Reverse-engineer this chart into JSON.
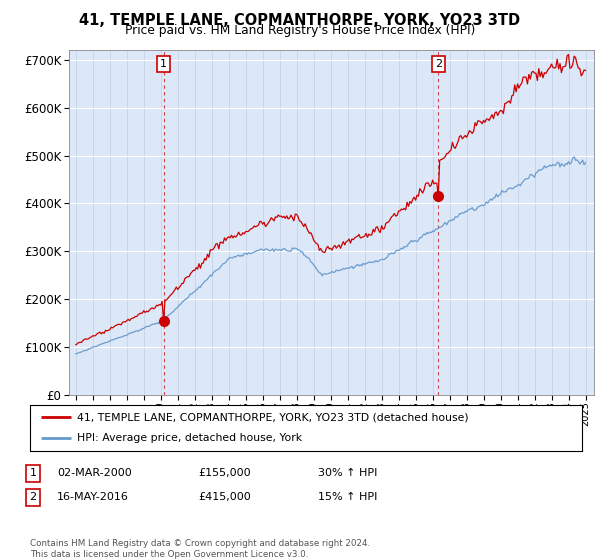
{
  "title": "41, TEMPLE LANE, COPMANTHORPE, YORK, YO23 3TD",
  "subtitle": "Price paid vs. HM Land Registry's House Price Index (HPI)",
  "legend_line1": "41, TEMPLE LANE, COPMANTHORPE, YORK, YO23 3TD (detached house)",
  "legend_line2": "HPI: Average price, detached house, York",
  "transaction1_label": "1",
  "transaction1_date": "02-MAR-2000",
  "transaction1_price": "£155,000",
  "transaction1_hpi": "30% ↑ HPI",
  "transaction2_label": "2",
  "transaction2_date": "16-MAY-2016",
  "transaction2_price": "£415,000",
  "transaction2_hpi": "15% ↑ HPI",
  "footer": "Contains HM Land Registry data © Crown copyright and database right 2024.\nThis data is licensed under the Open Government Licence v3.0.",
  "red_color": "#cc0000",
  "blue_color": "#6699cc",
  "background_chart": "#dce8f8",
  "background_fig": "#ffffff",
  "ylim": [
    0,
    720000
  ],
  "yticks": [
    0,
    100000,
    200000,
    300000,
    400000,
    500000,
    600000,
    700000
  ],
  "ytick_labels": [
    "£0",
    "£100K",
    "£200K",
    "£300K",
    "£400K",
    "£500K",
    "£600K",
    "£700K"
  ],
  "note_color": "#555555",
  "t1_year": 2000.17,
  "t2_year": 2016.37,
  "t1_price": 155000,
  "t2_price": 415000
}
